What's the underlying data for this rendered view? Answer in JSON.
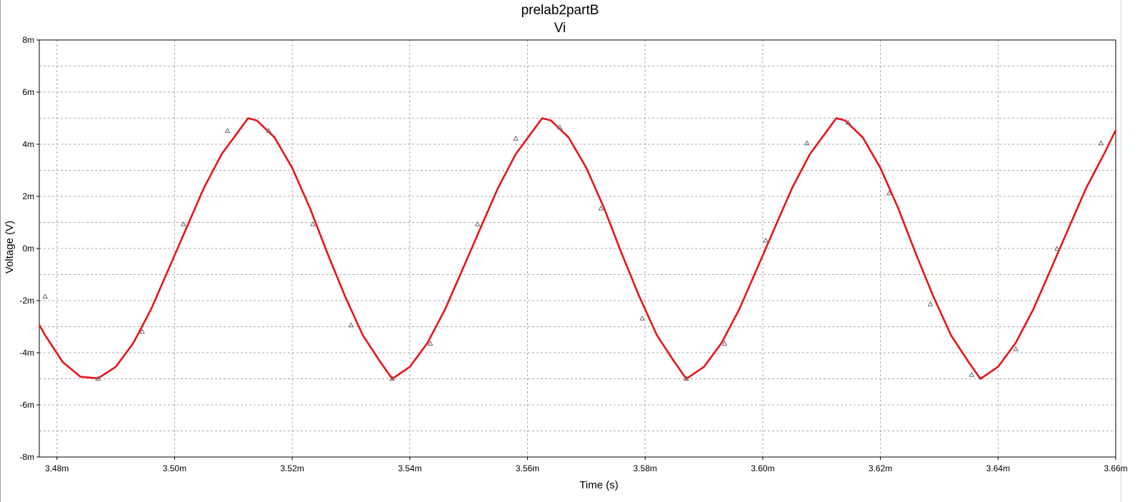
{
  "chart_data": {
    "type": "line",
    "title": "prelab2partB",
    "subtitle": "Vi",
    "xlabel": "Time (s)",
    "ylabel": "Voltage (V)",
    "xlim": [
      0.003477,
      0.00366
    ],
    "ylim": [
      -0.008,
      0.008
    ],
    "grid": true,
    "x_ticks": [
      0.00348,
      0.0035,
      0.00352,
      0.00354,
      0.00356,
      0.00358,
      0.0036,
      0.00362,
      0.00364,
      0.00366
    ],
    "x_tick_labels": [
      "3.48m",
      "3.50m",
      "3.52m",
      "3.54m",
      "3.56m",
      "3.58m",
      "3.60m",
      "3.62m",
      "3.64m",
      "3.66m"
    ],
    "y_ticks": [
      0.008,
      0.006,
      0.004,
      0.002,
      0,
      -0.002,
      -0.004,
      -0.006,
      -0.008
    ],
    "y_tick_labels": [
      "8m",
      "6m",
      "4m",
      "2m",
      "0m",
      "-2m",
      "-4m",
      "-6m",
      "-8m"
    ],
    "series": [
      {
        "color": "#e8141a",
        "amplitude": 0.005,
        "frequency_hz": 20000,
        "peak_time": 0.0035125,
        "x": [
          0.003477,
          0.003478,
          0.003481,
          0.003484,
          0.003487,
          0.00349,
          0.003493,
          0.003496,
          0.003499,
          0.003502,
          0.003505,
          0.003508,
          0.003511,
          0.0035125,
          0.003514,
          0.003517,
          0.00352,
          0.003523,
          0.003526,
          0.003529,
          0.003532,
          0.003535,
          0.003537,
          0.00354,
          0.003543,
          0.003546,
          0.003549,
          0.003552,
          0.003555,
          0.003558,
          0.003561,
          0.0035625,
          0.003564,
          0.003567,
          0.00357,
          0.003573,
          0.003576,
          0.003579,
          0.003582,
          0.003585,
          0.003587,
          0.00359,
          0.003593,
          0.003596,
          0.003599,
          0.003602,
          0.003605,
          0.003608,
          0.003611,
          0.0036125,
          0.003614,
          0.003617,
          0.00362,
          0.003623,
          0.003626,
          0.003629,
          0.003632,
          0.003635,
          0.003637,
          0.00364,
          0.003643,
          0.003646,
          0.003649,
          0.003652,
          0.003655,
          0.003658,
          0.00366
        ],
        "y": [
          -0.00293,
          -0.00333,
          -0.00436,
          -0.00492,
          -0.00498,
          -0.00454,
          -0.00362,
          -0.00233,
          -0.00078,
          0.00078,
          0.00233,
          0.00362,
          0.00454,
          0.005,
          0.00491,
          0.00426,
          0.00309,
          0.00156,
          -0.00019,
          -0.00184,
          -0.00333,
          -0.00436,
          -0.005,
          -0.00454,
          -0.00362,
          -0.00233,
          -0.00078,
          0.00078,
          0.00233,
          0.00362,
          0.00454,
          0.005,
          0.00491,
          0.00426,
          0.00309,
          0.00156,
          -0.00019,
          -0.00184,
          -0.00333,
          -0.00436,
          -0.005,
          -0.00454,
          -0.00362,
          -0.00233,
          -0.00078,
          0.00078,
          0.00233,
          0.00362,
          0.00454,
          0.005,
          0.00491,
          0.00426,
          0.00309,
          0.00156,
          -0.00019,
          -0.00184,
          -0.00333,
          -0.00436,
          -0.005,
          -0.00454,
          -0.00362,
          -0.00233,
          -0.00078,
          0.00078,
          0.00233,
          0.00362,
          0.00454
        ]
      }
    ],
    "markers_x": [
      0.003478,
      0.003487,
      0.0034945,
      0.0035015,
      0.003509,
      0.003516,
      0.0035235,
      0.00353,
      0.003537,
      0.0035435,
      0.0035515,
      0.003558,
      0.0035655,
      0.0035725,
      0.0035795,
      0.003587,
      0.0035935,
      0.0036005,
      0.0036075,
      0.0036145,
      0.0036215,
      0.0036285,
      0.0036355,
      0.003643,
      0.00365,
      0.0036575
    ]
  }
}
